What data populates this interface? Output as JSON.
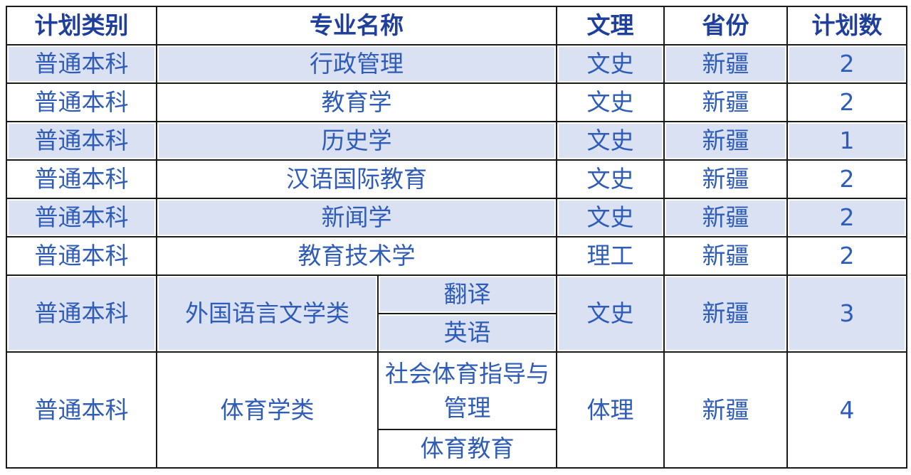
{
  "headers": [
    "计划类别",
    "专业名称",
    "文理",
    "省份",
    "计划数"
  ],
  "rows": [
    {
      "category": "普通本科",
      "major": "行政管理",
      "track": "文史",
      "province": "新疆",
      "count": "2"
    },
    {
      "category": "普通本科",
      "major": "教育学",
      "track": "文史",
      "province": "新疆",
      "count": "2"
    },
    {
      "category": "普通本科",
      "major": "历史学",
      "track": "文史",
      "province": "新疆",
      "count": "1"
    },
    {
      "category": "普通本科",
      "major": "汉语国际教育",
      "track": "文史",
      "province": "新疆",
      "count": "2"
    },
    {
      "category": "普通本科",
      "major": "新闻学",
      "track": "文史",
      "province": "新疆",
      "count": "2"
    },
    {
      "category": "普通本科",
      "major": "教育技术学",
      "track": "理工",
      "province": "新疆",
      "count": "2"
    }
  ],
  "groups": [
    {
      "category": "普通本科",
      "major": "外国语言文学类",
      "subs": [
        "翻译",
        "英语"
      ],
      "track": "文史",
      "province": "新疆",
      "count": "3"
    },
    {
      "category": "普通本科",
      "major": "体育学类",
      "subs": [
        "社会体育指导与管理",
        "体育教育"
      ],
      "track": "体理",
      "province": "新疆",
      "count": "4"
    }
  ],
  "colors": {
    "header_text": "#1f3f9c",
    "body_text": "#2f5cb8",
    "shade": "#d9e1f2",
    "border": "#1a1a1a"
  }
}
